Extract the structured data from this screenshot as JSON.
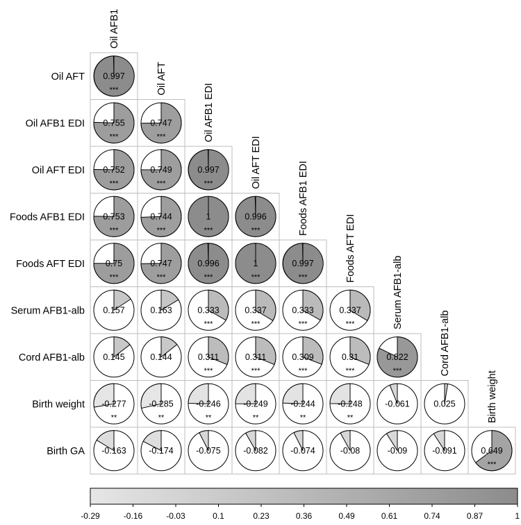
{
  "chart_data": {
    "type": "correlation-matrix-pie",
    "title": "",
    "variables": [
      "Oil AFB1",
      "Oil AFT",
      "Oil AFB1 EDI",
      "Oil AFT EDI",
      "Foods AFB1 EDI",
      "Foods AFT EDI",
      "Serum AFB1-alb",
      "Cord AFB1-alb",
      "Birth weight",
      "Birth GA"
    ],
    "row_labels": [
      "Oil AFT",
      "Oil AFB1 EDI",
      "Oil AFT EDI",
      "Foods AFB1 EDI",
      "Foods AFT EDI",
      "Serum AFB1-alb",
      "Cord AFB1-alb",
      "Birth weight",
      "Birth GA"
    ],
    "column_labels": [
      "Oil AFB1",
      "Oil AFT",
      "Oil AFB1 EDI",
      "Oil AFT EDI",
      "Foods AFB1 EDI",
      "Foods AFT EDI",
      "Serum AFB1-alb",
      "Cord AFB1-alb",
      "Birth weight"
    ],
    "cells": [
      {
        "row": "Oil AFT",
        "col": "Oil AFB1",
        "value": 0.997,
        "label": "0.997",
        "sig": "***"
      },
      {
        "row": "Oil AFB1 EDI",
        "col": "Oil AFB1",
        "value": 0.755,
        "label": "0.755",
        "sig": "***"
      },
      {
        "row": "Oil AFB1 EDI",
        "col": "Oil AFT",
        "value": 0.747,
        "label": "0.747",
        "sig": "***"
      },
      {
        "row": "Oil AFT EDI",
        "col": "Oil AFB1",
        "value": 0.752,
        "label": "0.752",
        "sig": "***"
      },
      {
        "row": "Oil AFT EDI",
        "col": "Oil AFT",
        "value": 0.749,
        "label": "0.749",
        "sig": "***"
      },
      {
        "row": "Oil AFT EDI",
        "col": "Oil AFB1 EDI",
        "value": 0.997,
        "label": "0.997",
        "sig": "***"
      },
      {
        "row": "Foods AFB1 EDI",
        "col": "Oil AFB1",
        "value": 0.753,
        "label": "0.753",
        "sig": "***"
      },
      {
        "row": "Foods AFB1 EDI",
        "col": "Oil AFT",
        "value": 0.744,
        "label": "0.744",
        "sig": "***"
      },
      {
        "row": "Foods AFB1 EDI",
        "col": "Oil AFB1 EDI",
        "value": 1,
        "label": "1",
        "sig": "***"
      },
      {
        "row": "Foods AFB1 EDI",
        "col": "Oil AFT EDI",
        "value": 0.996,
        "label": "0.996",
        "sig": "***"
      },
      {
        "row": "Foods AFT EDI",
        "col": "Oil AFB1",
        "value": 0.75,
        "label": "0.75",
        "sig": "***"
      },
      {
        "row": "Foods AFT EDI",
        "col": "Oil AFT",
        "value": 0.747,
        "label": "0.747",
        "sig": "***"
      },
      {
        "row": "Foods AFT EDI",
        "col": "Oil AFB1 EDI",
        "value": 0.996,
        "label": "0.996",
        "sig": "***"
      },
      {
        "row": "Foods AFT EDI",
        "col": "Oil AFT EDI",
        "value": 1,
        "label": "1",
        "sig": "***"
      },
      {
        "row": "Foods AFT EDI",
        "col": "Foods AFB1 EDI",
        "value": 0.997,
        "label": "0.997",
        "sig": "***"
      },
      {
        "row": "Serum AFB1-alb",
        "col": "Oil AFB1",
        "value": 0.157,
        "label": "0.157",
        "sig": ""
      },
      {
        "row": "Serum AFB1-alb",
        "col": "Oil AFT",
        "value": 0.163,
        "label": "0.163",
        "sig": ""
      },
      {
        "row": "Serum AFB1-alb",
        "col": "Oil AFB1 EDI",
        "value": 0.333,
        "label": "0.333",
        "sig": "***"
      },
      {
        "row": "Serum AFB1-alb",
        "col": "Oil AFT EDI",
        "value": 0.337,
        "label": "0.337",
        "sig": "***"
      },
      {
        "row": "Serum AFB1-alb",
        "col": "Foods AFB1 EDI",
        "value": 0.333,
        "label": "0.333",
        "sig": "***"
      },
      {
        "row": "Serum AFB1-alb",
        "col": "Foods AFT EDI",
        "value": 0.337,
        "label": "0.337",
        "sig": "***"
      },
      {
        "row": "Cord AFB1-alb",
        "col": "Oil AFB1",
        "value": 0.145,
        "label": "0.145",
        "sig": ""
      },
      {
        "row": "Cord AFB1-alb",
        "col": "Oil AFT",
        "value": 0.144,
        "label": "0.144",
        "sig": ""
      },
      {
        "row": "Cord AFB1-alb",
        "col": "Oil AFB1 EDI",
        "value": 0.311,
        "label": "0.311",
        "sig": "***"
      },
      {
        "row": "Cord AFB1-alb",
        "col": "Oil AFT EDI",
        "value": 0.311,
        "label": "0.311",
        "sig": "***"
      },
      {
        "row": "Cord AFB1-alb",
        "col": "Foods AFB1 EDI",
        "value": 0.309,
        "label": "0.309",
        "sig": "***"
      },
      {
        "row": "Cord AFB1-alb",
        "col": "Foods AFT EDI",
        "value": 0.31,
        "label": "0.31",
        "sig": "***"
      },
      {
        "row": "Cord AFB1-alb",
        "col": "Serum AFB1-alb",
        "value": 0.822,
        "label": "0.822",
        "sig": "***"
      },
      {
        "row": "Birth weight",
        "col": "Oil AFB1",
        "value": -0.277,
        "label": "-0.277",
        "sig": "**"
      },
      {
        "row": "Birth weight",
        "col": "Oil AFT",
        "value": -0.285,
        "label": "-0.285",
        "sig": "**"
      },
      {
        "row": "Birth weight",
        "col": "Oil AFB1 EDI",
        "value": -0.246,
        "label": "-0.246",
        "sig": "**"
      },
      {
        "row": "Birth weight",
        "col": "Oil AFT EDI",
        "value": -0.249,
        "label": "-0.249",
        "sig": "**"
      },
      {
        "row": "Birth weight",
        "col": "Foods AFB1 EDI",
        "value": -0.244,
        "label": "-0.244",
        "sig": "**"
      },
      {
        "row": "Birth weight",
        "col": "Foods AFT EDI",
        "value": -0.248,
        "label": "-0.248",
        "sig": "**"
      },
      {
        "row": "Birth weight",
        "col": "Serum AFB1-alb",
        "value": -0.061,
        "label": "-0.061",
        "sig": ""
      },
      {
        "row": "Birth weight",
        "col": "Cord AFB1-alb",
        "value": 0.025,
        "label": "0.025",
        "sig": ""
      },
      {
        "row": "Birth GA",
        "col": "Oil AFB1",
        "value": -0.163,
        "label": "-0.163",
        "sig": ""
      },
      {
        "row": "Birth GA",
        "col": "Oil AFT",
        "value": -0.174,
        "label": "-0.174",
        "sig": ""
      },
      {
        "row": "Birth GA",
        "col": "Oil AFB1 EDI",
        "value": -0.075,
        "label": "-0.075",
        "sig": ""
      },
      {
        "row": "Birth GA",
        "col": "Oil AFT EDI",
        "value": -0.082,
        "label": "-0.082",
        "sig": ""
      },
      {
        "row": "Birth GA",
        "col": "Foods AFB1 EDI",
        "value": -0.074,
        "label": "-0.074",
        "sig": ""
      },
      {
        "row": "Birth GA",
        "col": "Foods AFT EDI",
        "value": -0.08,
        "label": "-0.08",
        "sig": ""
      },
      {
        "row": "Birth GA",
        "col": "Serum AFB1-alb",
        "value": -0.09,
        "label": "-0.09",
        "sig": ""
      },
      {
        "row": "Birth GA",
        "col": "Cord AFB1-alb",
        "value": -0.091,
        "label": "-0.091",
        "sig": ""
      },
      {
        "row": "Birth GA",
        "col": "Birth weight",
        "value": 0.649,
        "label": "0.649",
        "sig": "***"
      }
    ],
    "colorbar": {
      "ticks": [
        "-0.29",
        "-0.16",
        "-0.03",
        "0.1",
        "0.23",
        "0.36",
        "0.49",
        "0.61",
        "0.74",
        "0.87",
        "1"
      ],
      "range": [
        -0.29,
        1
      ],
      "color_low": "#e6e6e6",
      "color_high": "#8c8c8c"
    },
    "colors": {
      "background": "#ffffff",
      "cell_border": "#bdbdbd",
      "pie_outline": "#000000"
    }
  }
}
